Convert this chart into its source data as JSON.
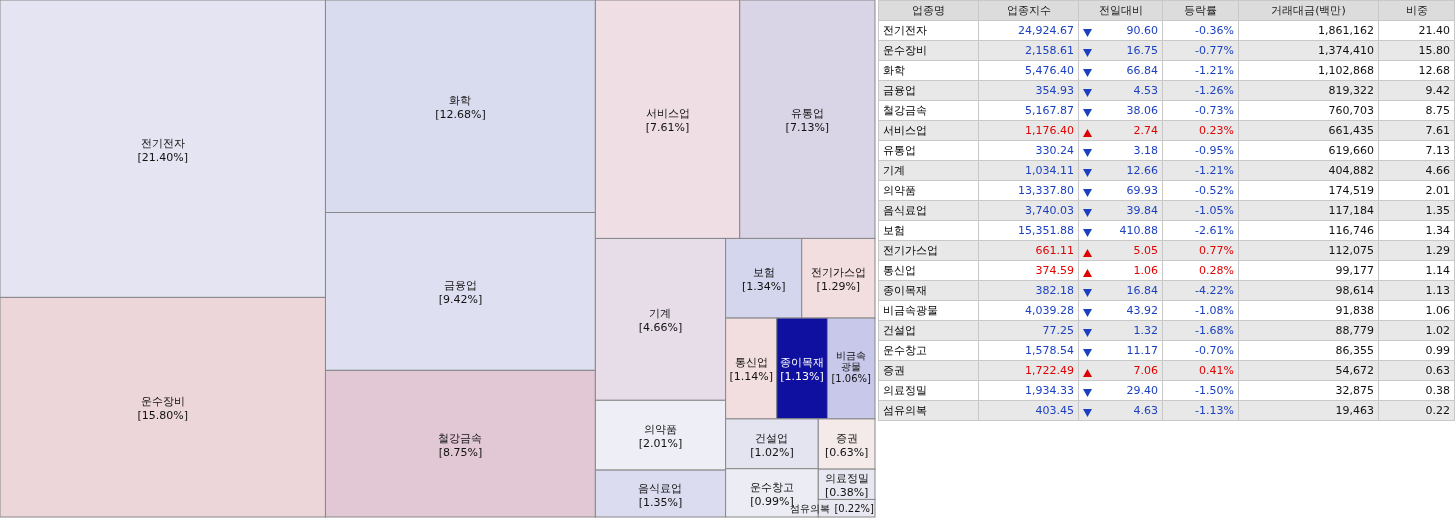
{
  "chart_data": [
    {
      "type": "other",
      "categories": [
        "전기전자",
        "운수장비",
        "화학",
        "금융업",
        "철강금속",
        "서비스업",
        "유통업",
        "기계",
        "의약품",
        "음식료업",
        "보험",
        "전기가스업",
        "통신업",
        "종이목재",
        "비금속광물",
        "건설업",
        "운수창고",
        "증권",
        "의료정밀",
        "섬유의복"
      ],
      "values": [
        21.4,
        15.8,
        12.68,
        9.42,
        8.75,
        7.61,
        7.13,
        4.66,
        2.01,
        1.35,
        1.34,
        1.29,
        1.14,
        1.13,
        1.06,
        1.02,
        0.99,
        0.63,
        0.38,
        0.22
      ],
      "value_labels": [
        "[21.40%]",
        "[15.80%]",
        "[12.68%]",
        "[9.42%]",
        "[8.75%]",
        "[7.61%]",
        "[7.13%]",
        "[4.66%]",
        "[2.01%]",
        "[1.35%]",
        "[1.34%]",
        "[1.29%]",
        "[1.14%]",
        "[1.13%]",
        "[1.06%]",
        "[1.02%]",
        "[0.99%]",
        "[0.63%]",
        "[0.38%]",
        "[0.22%]"
      ],
      "colors": [
        "#e4e4f2",
        "#ecd6da",
        "#d9dbef",
        "#dedff0",
        "#e2c8d4",
        "#efdfe4",
        "#d9d4e6",
        "#e6dde8",
        "#eeeef6",
        "#dcdcf0",
        "#d4d6ee",
        "#f2dede",
        "#f2dede",
        "#1010a0",
        "#c8c8ea",
        "#e4e4f0",
        "#ececf4",
        "#f4eaea",
        "#e8e8f2",
        "#e8e8f2"
      ]
    },
    {
      "type": "other",
      "xlabel": "업종명",
      "categories": [
        "전기전자",
        "운수장비",
        "화학",
        "금융업",
        "철강금속",
        "서비스업",
        "유통업",
        "기계",
        "의약품",
        "음식료업",
        "보험",
        "전기가스업",
        "통신업",
        "종이목재",
        "비금속광물",
        "건설업",
        "운수창고",
        "증권",
        "의료정밀",
        "섬유의복"
      ],
      "series": [
        {
          "name": "업종지수",
          "values": [
            24924.67,
            2158.61,
            5476.4,
            354.93,
            5167.87,
            1176.4,
            330.24,
            1034.11,
            13337.8,
            3740.03,
            15351.88,
            661.11,
            374.59,
            382.18,
            4039.28,
            77.25,
            1578.54,
            1722.49,
            1934.33,
            403.45
          ],
          "value_labels": [
            "24,924.67",
            "2,158.61",
            "5,476.40",
            "354.93",
            "5,167.87",
            "1,176.40",
            "330.24",
            "1,034.11",
            "13,337.80",
            "3,740.03",
            "15,351.88",
            "661.11",
            "374.59",
            "382.18",
            "4,039.28",
            "77.25",
            "1,578.54",
            "1,722.49",
            "1,934.33",
            "403.45"
          ]
        },
        {
          "name": "전일대비",
          "values": [
            90.6,
            16.75,
            66.84,
            4.53,
            38.06,
            2.74,
            3.18,
            12.66,
            69.93,
            39.84,
            410.88,
            5.05,
            1.06,
            16.84,
            43.92,
            1.32,
            11.17,
            7.06,
            29.4,
            4.63
          ],
          "value_labels": [
            "90.60",
            "16.75",
            "66.84",
            "4.53",
            "38.06",
            "2.74",
            "3.18",
            "12.66",
            "69.93",
            "39.84",
            "410.88",
            "5.05",
            "1.06",
            "16.84",
            "43.92",
            "1.32",
            "11.17",
            "7.06",
            "29.40",
            "4.63"
          ]
        },
        {
          "name": "등락률",
          "values": [
            -0.36,
            -0.77,
            -1.21,
            -1.26,
            -0.73,
            0.23,
            -0.95,
            -1.21,
            -0.52,
            -1.05,
            -2.61,
            0.77,
            0.28,
            -4.22,
            -1.08,
            -1.68,
            -0.7,
            0.41,
            -1.5,
            -1.13
          ],
          "value_labels": [
            "-0.36%",
            "-0.77%",
            "-1.21%",
            "-1.26%",
            "-0.73%",
            "0.23%",
            "-0.95%",
            "-1.21%",
            "-0.52%",
            "-1.05%",
            "-2.61%",
            "0.77%",
            "0.28%",
            "-4.22%",
            "-1.08%",
            "-1.68%",
            "-0.70%",
            "0.41%",
            "-1.50%",
            "-1.13%"
          ]
        },
        {
          "name": "거래대금(백만)",
          "values": [
            1861162,
            1374410,
            1102868,
            819322,
            760703,
            661435,
            619660,
            404882,
            174519,
            117184,
            116746,
            112075,
            99177,
            98614,
            91838,
            88779,
            86355,
            54672,
            32875,
            19463
          ],
          "value_labels": [
            "1,861,162",
            "1,374,410",
            "1,102,868",
            "819,322",
            "760,703",
            "661,435",
            "619,660",
            "404,882",
            "174,519",
            "117,184",
            "116,746",
            "112,075",
            "99,177",
            "98,614",
            "91,838",
            "88,779",
            "86,355",
            "54,672",
            "32,875",
            "19,463"
          ]
        },
        {
          "name": "비중",
          "values": [
            21.4,
            15.8,
            12.68,
            9.42,
            8.75,
            7.61,
            7.13,
            4.66,
            2.01,
            1.35,
            1.34,
            1.29,
            1.14,
            1.13,
            1.06,
            1.02,
            0.99,
            0.63,
            0.38,
            0.22
          ],
          "value_labels": [
            "21.40",
            "15.80",
            "12.68",
            "9.42",
            "8.75",
            "7.61",
            "7.13",
            "4.66",
            "2.01",
            "1.35",
            "1.34",
            "1.29",
            "1.14",
            "1.13",
            "1.06",
            "1.02",
            "0.99",
            "0.63",
            "0.38",
            "0.22"
          ]
        }
      ]
    }
  ]
}
